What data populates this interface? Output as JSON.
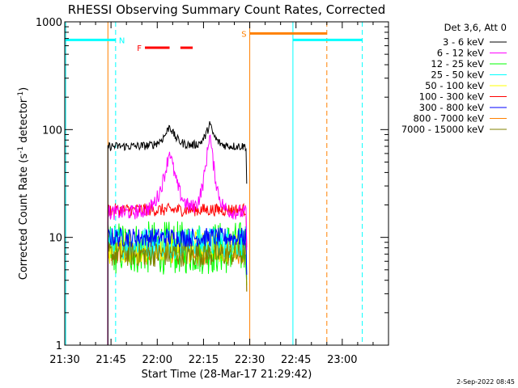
{
  "chart_data": {
    "type": "line",
    "title": "RHESSI Observing Summary Count Rates, Corrected",
    "xlabel": "Start Time (28-Mar-17 21:29:42)",
    "ylabel_main": "Corrected Count Rate (s",
    "ylabel_sup1": "-1",
    "ylabel_mid": " detector",
    "ylabel_sup2": "-1",
    "ylabel_end": ")",
    "yscale": "log",
    "ylim": [
      1,
      1000
    ],
    "xlim_minutes_after_2130": [
      0,
      105
    ],
    "x_ticks": [
      {
        "minute": 0,
        "label": "21:30"
      },
      {
        "minute": 15,
        "label": "21:45"
      },
      {
        "minute": 30,
        "label": "22:00"
      },
      {
        "minute": 45,
        "label": "22:15"
      },
      {
        "minute": 60,
        "label": "22:30"
      },
      {
        "minute": 75,
        "label": "22:45"
      },
      {
        "minute": 90,
        "label": "23:00"
      }
    ],
    "y_ticks": [
      {
        "value": 1,
        "label": "1"
      },
      {
        "value": 10,
        "label": "10"
      },
      {
        "value": 100,
        "label": "100"
      },
      {
        "value": 1000,
        "label": "1000"
      }
    ],
    "legend_header": "Det 3,6, Att 0",
    "series": [
      {
        "name": "3 - 6 keV",
        "color": "#000000",
        "start": 14,
        "end": 59,
        "base": 70,
        "noise": 0.04,
        "peaks": [
          [
            34,
            110,
            2.0
          ],
          [
            47,
            115,
            1.5
          ]
        ]
      },
      {
        "name": "6 - 12 keV",
        "color": "#ff00ff",
        "start": 14,
        "end": 59,
        "base": 17,
        "noise": 0.07,
        "peaks": [
          [
            34,
            65,
            2.0
          ],
          [
            47,
            95,
            1.3
          ]
        ]
      },
      {
        "name": "12 - 25 keV",
        "color": "#00ff00",
        "start": 14,
        "end": 59,
        "base": 8,
        "noise": 0.25
      },
      {
        "name": "25 - 50 keV",
        "color": "#00ffff",
        "start": 14,
        "end": 59,
        "base": 9,
        "noise": 0.15
      },
      {
        "name": "50 - 100 keV",
        "color": "#ffff00",
        "start": 14,
        "end": 59,
        "base": 8,
        "noise": 0.15
      },
      {
        "name": "100 - 300 keV",
        "color": "#ff0000",
        "start": 14,
        "end": 59,
        "base": 18,
        "noise": 0.06
      },
      {
        "name": "300 - 800 keV",
        "color": "#0000ff",
        "start": 14,
        "end": 59,
        "base": 10,
        "noise": 0.09
      },
      {
        "name": "800 - 7000 keV",
        "color": "#ff8000",
        "start": 14,
        "end": 59,
        "base": 7,
        "noise": 0.1
      },
      {
        "name": "7000 - 15000 keV",
        "color": "#808000",
        "start": 14,
        "end": 59,
        "base": 7,
        "noise": 0.12
      }
    ],
    "flags": {
      "night_label": "N",
      "saa_label": "S",
      "flare_label": "F",
      "night_intervals": [
        [
          0,
          16.5
        ],
        [
          74,
          96.5
        ]
      ],
      "saa_intervals": [
        [
          60,
          85
        ]
      ],
      "flare_intervals": [
        [
          26,
          34
        ],
        [
          37.5,
          41.5
        ]
      ],
      "vertical_lines": [
        {
          "minute": 0.3,
          "color": "#00ffff",
          "style": "solid"
        },
        {
          "minute": 16.5,
          "color": "#00ffff",
          "style": "dashed"
        },
        {
          "minute": 14,
          "color": "#ff8000",
          "style": "solid"
        },
        {
          "minute": 60,
          "color": "#ff8000",
          "style": "solid"
        },
        {
          "minute": 74,
          "color": "#00ffff",
          "style": "solid"
        },
        {
          "minute": 85,
          "color": "#ff8000",
          "style": "dashed"
        },
        {
          "minute": 96.5,
          "color": "#00ffff",
          "style": "dashed"
        }
      ]
    },
    "footer_date": "2-Sep-2022 08:45"
  }
}
